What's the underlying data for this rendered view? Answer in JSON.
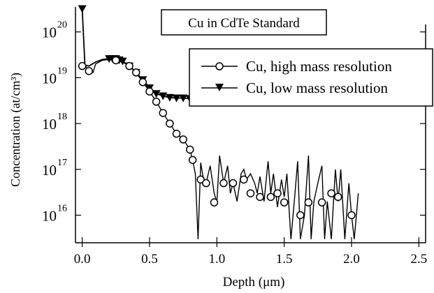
{
  "chart_data": {
    "type": "line",
    "title": "Cu in CdTe Standard",
    "xlabel": "Depth (μm)",
    "ylabel": "Concentration (at/cm³)",
    "ylog": true,
    "xlim": [
      -0.05,
      2.55
    ],
    "ylim": [
      2500000000000000.0,
      3.5e+20
    ],
    "grid": false,
    "legend_position": "top-right",
    "x_ticks": [
      {
        "v": 0.0,
        "label": "0.0"
      },
      {
        "v": 0.5,
        "label": "0.5"
      },
      {
        "v": 1.0,
        "label": "1.0"
      },
      {
        "v": 1.5,
        "label": "1.5"
      },
      {
        "v": 2.0,
        "label": "2.0"
      },
      {
        "v": 2.5,
        "label": "2.5"
      }
    ],
    "y_ticks": [
      {
        "v": 1e+16,
        "base": "10",
        "exp": "16"
      },
      {
        "v": 1e+17,
        "base": "10",
        "exp": "17"
      },
      {
        "v": 1e+18,
        "base": "10",
        "exp": "18"
      },
      {
        "v": 1e+19,
        "base": "10",
        "exp": "19"
      },
      {
        "v": 1e+20,
        "base": "10",
        "exp": "20"
      }
    ],
    "series": [
      {
        "name": "Cu, high mass resolution",
        "marker": "circle",
        "color": "#000000",
        "x": [
          0.0,
          0.02,
          0.05,
          0.08,
          0.1,
          0.15,
          0.2,
          0.25,
          0.3,
          0.35,
          0.4,
          0.45,
          0.5,
          0.55,
          0.6,
          0.65,
          0.7,
          0.75,
          0.8,
          0.82,
          0.84,
          0.86,
          0.88,
          0.9,
          0.92,
          0.95,
          0.98,
          1.0,
          1.02,
          1.05,
          1.08,
          1.1,
          1.12,
          1.15,
          1.18,
          1.2,
          1.22,
          1.25,
          1.28,
          1.3,
          1.32,
          1.35,
          1.38,
          1.4,
          1.42,
          1.45,
          1.48,
          1.5,
          1.52,
          1.55,
          1.58,
          1.6,
          1.62,
          1.65,
          1.68,
          1.7,
          1.72,
          1.75,
          1.78,
          1.8,
          1.82,
          1.85,
          1.88,
          1.9,
          1.92,
          1.95,
          1.98,
          2.0,
          2.02,
          2.05
        ],
        "y": [
          1.8e+19,
          1.9e+19,
          1.4e+19,
          1.3e+19,
          2e+19,
          2.4e+19,
          2.5e+19,
          2.4e+19,
          2.2e+19,
          1.8e+19,
          1.3e+19,
          8e+18,
          5e+18,
          3e+18,
          1.7e+18,
          1e+18,
          6e+17,
          4.5e+17,
          2.7e+17,
          1.6e+17,
          8e+16,
          3000000000000000.0,
          1.4e+17,
          6e+16,
          5e+16,
          1.2e+17,
          3e+16,
          1.9e+16,
          2e+17,
          5e+16,
          1.2e+17,
          3e+16,
          5e+16,
          2e+16,
          8e+16,
          1e+17,
          6e+16,
          8e+16,
          5e+16,
          3e+16,
          7e+16,
          2e+16,
          1.5e+17,
          3e+16,
          8e+16,
          1.5e+16,
          6e+16,
          2.5e+16,
          8e+16,
          3000000000000000.0,
          3e+16,
          1.5e+17,
          3000000000000000.0,
          1e+16,
          2e+17,
          3000000000000000.0,
          2e+16,
          5e+16,
          1.2e+17,
          3000000000000000.0,
          2e+16,
          3000000000000000.0,
          1e+17,
          2e+16,
          1e+17,
          3000000000000000.0,
          5e+16,
          1e+16,
          3000000000000000.0,
          3e+16
        ],
        "markers": [
          {
            "x": 0.0,
            "y": 1.8e+19
          },
          {
            "x": 0.05,
            "y": 1.4e+19
          },
          {
            "x": 0.25,
            "y": 2.4e+19
          },
          {
            "x": 0.35,
            "y": 1.8e+19
          },
          {
            "x": 0.4,
            "y": 1.3e+19
          },
          {
            "x": 0.45,
            "y": 8e+18
          },
          {
            "x": 0.5,
            "y": 5e+18
          },
          {
            "x": 0.55,
            "y": 3e+18
          },
          {
            "x": 0.6,
            "y": 1.7e+18
          },
          {
            "x": 0.65,
            "y": 1e+18
          },
          {
            "x": 0.7,
            "y": 6e+17
          },
          {
            "x": 0.75,
            "y": 4.5e+17
          },
          {
            "x": 0.8,
            "y": 2.7e+17
          },
          {
            "x": 0.82,
            "y": 1.6e+17
          },
          {
            "x": 0.88,
            "y": 6e+16
          },
          {
            "x": 0.92,
            "y": 5e+16
          },
          {
            "x": 0.98,
            "y": 1.9e+16
          },
          {
            "x": 1.05,
            "y": 5e+16
          },
          {
            "x": 1.12,
            "y": 5e+16
          },
          {
            "x": 1.2,
            "y": 6e+16
          },
          {
            "x": 1.25,
            "y": 3e+16
          },
          {
            "x": 1.32,
            "y": 2.5e+16
          },
          {
            "x": 1.4,
            "y": 2.5e+16
          },
          {
            "x": 1.45,
            "y": 3e+16
          },
          {
            "x": 1.5,
            "y": 1.9e+16
          },
          {
            "x": 1.62,
            "y": 1e+16
          },
          {
            "x": 1.68,
            "y": 1.9e+16
          },
          {
            "x": 1.78,
            "y": 1.9e+16
          },
          {
            "x": 1.85,
            "y": 3e+16
          },
          {
            "x": 1.9,
            "y": 2.5e+16
          },
          {
            "x": 2.0,
            "y": 1e+16
          }
        ]
      },
      {
        "name": "Cu, low mass resolution",
        "marker": "triangle-down",
        "color": "#000000",
        "x": [
          0.0,
          0.02,
          0.05,
          0.1,
          0.15,
          0.2,
          0.25,
          0.3,
          0.35,
          0.4,
          0.45,
          0.5,
          0.55,
          0.6,
          0.65,
          0.7,
          0.75,
          0.8,
          0.85,
          0.9,
          0.95,
          1.0,
          1.05,
          1.1,
          1.15,
          1.2,
          1.25,
          1.3,
          1.35,
          1.4,
          1.45,
          1.48
        ],
        "y": [
          3.2e+20,
          1.9e+19,
          1.8e+19,
          2.2e+19,
          2.5e+19,
          2.6e+19,
          2.6e+19,
          2.3e+19,
          1.8e+19,
          1.3e+19,
          9e+18,
          6e+18,
          4.5e+18,
          4e+18,
          3.7e+18,
          3.6e+18,
          3.6e+18,
          3.5e+18,
          3.5e+18,
          3.4e+18,
          3.4e+18,
          3.4e+18,
          3.5e+18,
          3.5e+18,
          3.5e+18,
          3.6e+18,
          3.6e+18,
          3.5e+18,
          3.6e+18,
          3.6e+18,
          3.5e+18,
          3.5e+18
        ],
        "markers_x": [
          0.0,
          0.2,
          0.225,
          0.25,
          0.275,
          0.3,
          0.35,
          0.4,
          0.45,
          0.5,
          0.55,
          0.6,
          0.65,
          0.7,
          0.75,
          0.8,
          0.85,
          0.9,
          0.95,
          1.0,
          1.05,
          1.1,
          1.15,
          1.2,
          1.25,
          1.3,
          1.35,
          1.4,
          1.45
        ]
      }
    ]
  }
}
